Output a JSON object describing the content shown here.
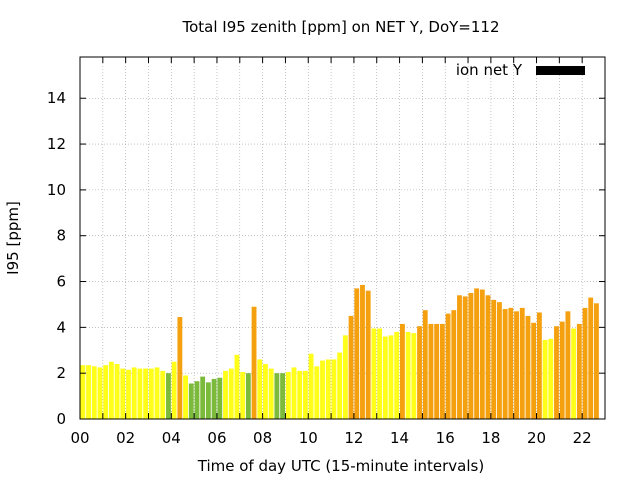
{
  "chart_data": {
    "type": "bar",
    "title": "Total I95 zenith [ppm] on NET Y, DoY=112",
    "xlabel": "Time of day UTC (15-minute intervals)",
    "ylabel": "I95 [ppm]",
    "xlim": [
      0,
      23
    ],
    "ylim": [
      0,
      15.8
    ],
    "grid": true,
    "legend_position": "top-right",
    "legend": [
      {
        "name": "ion net Y",
        "color": "#000000"
      }
    ],
    "x_ticks": [
      "00",
      "02",
      "04",
      "06",
      "08",
      "10",
      "12",
      "14",
      "16",
      "18",
      "20",
      "22"
    ],
    "y_ticks": [
      "0",
      "2",
      "4",
      "6",
      "8",
      "10",
      "12",
      "14"
    ],
    "colors": {
      "good": "#7cba3c",
      "moderate": "#ffff1a",
      "elevated": "#f5a00f"
    },
    "bar_interval_hours": 0.25,
    "x": [
      0.25,
      0.5,
      0.75,
      1.0,
      1.25,
      1.5,
      1.75,
      2.0,
      2.25,
      2.5,
      2.75,
      3.0,
      3.25,
      3.5,
      3.75,
      4.0,
      4.25,
      4.5,
      4.75,
      5.0,
      5.25,
      5.5,
      5.75,
      6.0,
      6.25,
      6.5,
      6.75,
      7.0,
      7.25,
      7.5,
      7.75,
      8.0,
      8.25,
      8.5,
      8.75,
      9.0,
      9.25,
      9.5,
      9.75,
      10.0,
      10.25,
      10.5,
      10.75,
      11.0,
      11.25,
      11.5,
      11.75,
      12.0,
      12.25,
      12.5,
      12.75,
      13.0,
      13.25,
      13.5,
      13.75,
      14.0,
      14.25,
      14.5,
      14.75,
      15.0,
      15.25,
      15.5,
      15.75,
      16.0,
      16.25,
      16.5,
      16.75,
      17.0,
      17.25,
      17.5,
      17.75,
      18.0,
      18.25,
      18.5,
      18.75,
      19.0,
      19.25,
      19.5,
      19.75,
      20.0,
      20.25,
      20.5,
      20.75,
      21.0,
      21.25,
      21.5,
      21.75,
      22.0,
      22.25,
      22.5,
      22.75
    ],
    "values": [
      2.35,
      2.35,
      2.3,
      2.25,
      2.35,
      2.5,
      2.4,
      2.2,
      2.15,
      2.25,
      2.2,
      2.2,
      2.2,
      2.25,
      2.1,
      2.0,
      2.5,
      4.45,
      1.9,
      1.55,
      1.65,
      1.85,
      1.6,
      1.75,
      1.8,
      2.1,
      2.2,
      2.8,
      2.05,
      2.0,
      4.9,
      2.6,
      2.4,
      2.2,
      2.0,
      2.0,
      2.05,
      2.25,
      2.1,
      2.1,
      2.85,
      2.3,
      2.55,
      2.6,
      2.6,
      2.9,
      3.65,
      4.5,
      5.7,
      5.85,
      5.6,
      3.95,
      3.95,
      3.6,
      3.65,
      3.8,
      4.15,
      3.8,
      3.75,
      4.05,
      4.75,
      4.15,
      4.15,
      4.15,
      4.6,
      4.75,
      5.4,
      5.35,
      5.5,
      5.7,
      5.65,
      5.4,
      5.2,
      5.1,
      4.8,
      4.85,
      4.7,
      4.85,
      4.5,
      4.2,
      4.65,
      3.45,
      3.5,
      4.05,
      4.25,
      4.7,
      3.95,
      4.15,
      4.85,
      5.3,
      5.05
    ],
    "levels": [
      "moderate",
      "moderate",
      "moderate",
      "moderate",
      "moderate",
      "moderate",
      "moderate",
      "moderate",
      "moderate",
      "moderate",
      "moderate",
      "moderate",
      "moderate",
      "moderate",
      "moderate",
      "good",
      "moderate",
      "elevated",
      "moderate",
      "good",
      "good",
      "good",
      "good",
      "good",
      "good",
      "moderate",
      "moderate",
      "moderate",
      "moderate",
      "good",
      "elevated",
      "moderate",
      "moderate",
      "moderate",
      "good",
      "good",
      "moderate",
      "moderate",
      "moderate",
      "moderate",
      "moderate",
      "moderate",
      "moderate",
      "moderate",
      "moderate",
      "moderate",
      "moderate",
      "elevated",
      "elevated",
      "elevated",
      "elevated",
      "moderate",
      "moderate",
      "moderate",
      "moderate",
      "moderate",
      "elevated",
      "moderate",
      "moderate",
      "elevated",
      "elevated",
      "elevated",
      "elevated",
      "elevated",
      "elevated",
      "elevated",
      "elevated",
      "elevated",
      "elevated",
      "elevated",
      "elevated",
      "elevated",
      "elevated",
      "elevated",
      "elevated",
      "elevated",
      "elevated",
      "elevated",
      "elevated",
      "elevated",
      "elevated",
      "moderate",
      "moderate",
      "elevated",
      "elevated",
      "elevated",
      "moderate",
      "elevated",
      "elevated",
      "elevated",
      "elevated"
    ]
  }
}
